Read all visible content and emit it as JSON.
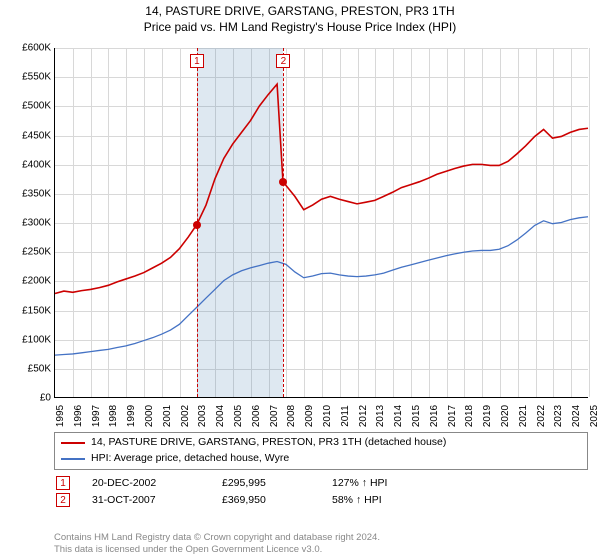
{
  "title_line1": "14, PASTURE DRIVE, GARSTANG, PRESTON, PR3 1TH",
  "title_line2": "Price paid vs. HM Land Registry's House Price Index (HPI)",
  "title_fontsize": 12,
  "chart": {
    "type": "line",
    "x_years": [
      1995,
      1996,
      1997,
      1998,
      1999,
      2000,
      2001,
      2002,
      2003,
      2004,
      2005,
      2006,
      2007,
      2008,
      2009,
      2010,
      2011,
      2012,
      2013,
      2014,
      2015,
      2016,
      2017,
      2018,
      2019,
      2020,
      2021,
      2022,
      2023,
      2024,
      2025
    ],
    "ylim": [
      0,
      600000
    ],
    "ytick_step": 50000,
    "ytick_labels": [
      "£0",
      "£50K",
      "£100K",
      "£150K",
      "£200K",
      "£250K",
      "£300K",
      "£350K",
      "£400K",
      "£450K",
      "£500K",
      "£550K",
      "£600K"
    ],
    "grid_color": "#d8d8d8",
    "background_color": "#ffffff",
    "axis_color": "#000000",
    "shaded_band": {
      "from_year": 2002.97,
      "to_year": 2007.83,
      "fill": "rgba(70,130,180,0.18)"
    },
    "series": [
      {
        "key": "property",
        "label": "14, PASTURE DRIVE, GARSTANG, PRESTON, PR3 1TH (detached house)",
        "color": "#cc0000",
        "line_width": 1.6,
        "points": [
          [
            1995.0,
            178000
          ],
          [
            1995.5,
            182000
          ],
          [
            1996.0,
            180000
          ],
          [
            1996.5,
            183000
          ],
          [
            1997.0,
            185000
          ],
          [
            1997.5,
            188000
          ],
          [
            1998.0,
            192000
          ],
          [
            1998.5,
            198000
          ],
          [
            1999.0,
            203000
          ],
          [
            1999.5,
            208000
          ],
          [
            2000.0,
            214000
          ],
          [
            2000.5,
            222000
          ],
          [
            2001.0,
            230000
          ],
          [
            2001.5,
            240000
          ],
          [
            2002.0,
            255000
          ],
          [
            2002.5,
            275000
          ],
          [
            2002.97,
            295995
          ],
          [
            2003.5,
            330000
          ],
          [
            2004.0,
            375000
          ],
          [
            2004.5,
            410000
          ],
          [
            2005.0,
            435000
          ],
          [
            2005.5,
            455000
          ],
          [
            2006.0,
            475000
          ],
          [
            2006.5,
            500000
          ],
          [
            2007.0,
            520000
          ],
          [
            2007.5,
            538000
          ],
          [
            2007.83,
            369950
          ],
          [
            2008.1,
            360000
          ],
          [
            2008.5,
            345000
          ],
          [
            2009.0,
            322000
          ],
          [
            2009.5,
            330000
          ],
          [
            2010.0,
            340000
          ],
          [
            2010.5,
            345000
          ],
          [
            2011.0,
            340000
          ],
          [
            2011.5,
            336000
          ],
          [
            2012.0,
            332000
          ],
          [
            2012.5,
            335000
          ],
          [
            2013.0,
            338000
          ],
          [
            2013.5,
            345000
          ],
          [
            2014.0,
            352000
          ],
          [
            2014.5,
            360000
          ],
          [
            2015.0,
            365000
          ],
          [
            2015.5,
            370000
          ],
          [
            2016.0,
            376000
          ],
          [
            2016.5,
            383000
          ],
          [
            2017.0,
            388000
          ],
          [
            2017.5,
            393000
          ],
          [
            2018.0,
            397000
          ],
          [
            2018.5,
            400000
          ],
          [
            2019.0,
            400000
          ],
          [
            2019.5,
            398000
          ],
          [
            2020.0,
            398000
          ],
          [
            2020.5,
            405000
          ],
          [
            2021.0,
            418000
          ],
          [
            2021.5,
            432000
          ],
          [
            2022.0,
            448000
          ],
          [
            2022.5,
            460000
          ],
          [
            2023.0,
            445000
          ],
          [
            2023.5,
            448000
          ],
          [
            2024.0,
            455000
          ],
          [
            2024.5,
            460000
          ],
          [
            2025.0,
            462000
          ]
        ]
      },
      {
        "key": "hpi",
        "label": "HPI: Average price, detached house, Wyre",
        "color": "#4472c4",
        "line_width": 1.3,
        "points": [
          [
            1995.0,
            72000
          ],
          [
            1995.5,
            73000
          ],
          [
            1996.0,
            74000
          ],
          [
            1996.5,
            76000
          ],
          [
            1997.0,
            78000
          ],
          [
            1997.5,
            80000
          ],
          [
            1998.0,
            82000
          ],
          [
            1998.5,
            85000
          ],
          [
            1999.0,
            88000
          ],
          [
            1999.5,
            92000
          ],
          [
            2000.0,
            97000
          ],
          [
            2000.5,
            102000
          ],
          [
            2001.0,
            108000
          ],
          [
            2001.5,
            115000
          ],
          [
            2002.0,
            125000
          ],
          [
            2002.5,
            140000
          ],
          [
            2003.0,
            155000
          ],
          [
            2003.5,
            170000
          ],
          [
            2004.0,
            185000
          ],
          [
            2004.5,
            200000
          ],
          [
            2005.0,
            210000
          ],
          [
            2005.5,
            217000
          ],
          [
            2006.0,
            222000
          ],
          [
            2006.5,
            226000
          ],
          [
            2007.0,
            230000
          ],
          [
            2007.5,
            233000
          ],
          [
            2008.0,
            228000
          ],
          [
            2008.5,
            215000
          ],
          [
            2009.0,
            205000
          ],
          [
            2009.5,
            208000
          ],
          [
            2010.0,
            212000
          ],
          [
            2010.5,
            213000
          ],
          [
            2011.0,
            210000
          ],
          [
            2011.5,
            208000
          ],
          [
            2012.0,
            207000
          ],
          [
            2012.5,
            208000
          ],
          [
            2013.0,
            210000
          ],
          [
            2013.5,
            213000
          ],
          [
            2014.0,
            218000
          ],
          [
            2014.5,
            223000
          ],
          [
            2015.0,
            227000
          ],
          [
            2015.5,
            231000
          ],
          [
            2016.0,
            235000
          ],
          [
            2016.5,
            239000
          ],
          [
            2017.0,
            243000
          ],
          [
            2017.5,
            246000
          ],
          [
            2018.0,
            249000
          ],
          [
            2018.5,
            251000
          ],
          [
            2019.0,
            252000
          ],
          [
            2019.5,
            252000
          ],
          [
            2020.0,
            254000
          ],
          [
            2020.5,
            260000
          ],
          [
            2021.0,
            270000
          ],
          [
            2021.5,
            282000
          ],
          [
            2022.0,
            295000
          ],
          [
            2022.5,
            303000
          ],
          [
            2023.0,
            298000
          ],
          [
            2023.5,
            300000
          ],
          [
            2024.0,
            305000
          ],
          [
            2024.5,
            308000
          ],
          [
            2025.0,
            310000
          ]
        ]
      }
    ],
    "markers": [
      {
        "id": "1",
        "year": 2002.97,
        "value": 295995,
        "box_top_offset": 6
      },
      {
        "id": "2",
        "year": 2007.83,
        "value": 369950,
        "box_top_offset": 6
      }
    ]
  },
  "legend": {
    "border_color": "#888888",
    "fontsize": 10.5
  },
  "events": [
    {
      "id": "1",
      "date": "20-DEC-2002",
      "price": "£295,995",
      "pct": "127%",
      "arrow": "↑",
      "suffix": "HPI"
    },
    {
      "id": "2",
      "date": "31-OCT-2007",
      "price": "£369,950",
      "pct": "58%",
      "arrow": "↑",
      "suffix": "HPI"
    }
  ],
  "attribution_line1": "Contains HM Land Registry data © Crown copyright and database right 2024.",
  "attribution_line2": "This data is licensed under the Open Government Licence v3.0."
}
